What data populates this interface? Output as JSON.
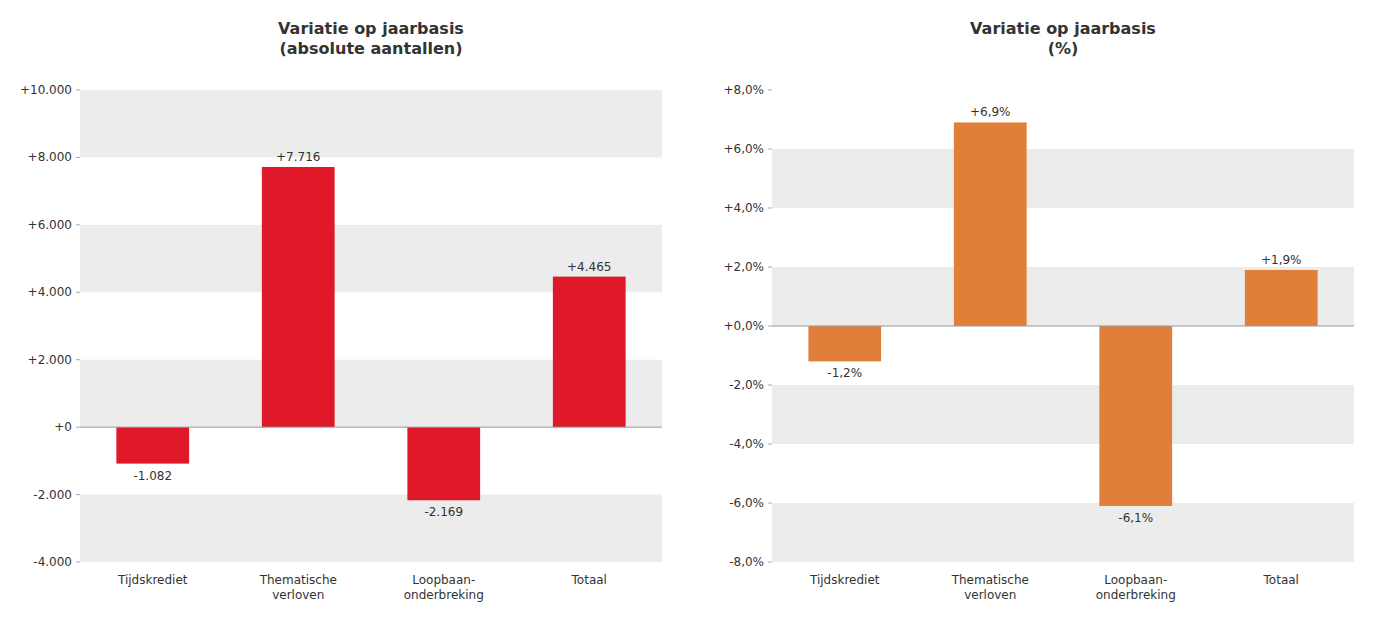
{
  "chart_data": [
    {
      "type": "bar",
      "title": "Variatie op jaarbasis\n(absolute aantallen)",
      "categories": [
        "Tijdskrediet",
        "Thematische\nverloven",
        "Loopbaan-\nonderbreking",
        "Totaal"
      ],
      "values": [
        -1082,
        7716,
        -2169,
        4465
      ],
      "value_labels": [
        "-1.082",
        "+7.716",
        "-2.169",
        "+4.465"
      ],
      "data_labels": true,
      "color": "#e0192a",
      "ylim": [
        -4000,
        10000
      ],
      "yticks": [
        {
          "value": -4000,
          "label": "-4.000"
        },
        {
          "value": -2000,
          "label": "-2.000"
        },
        {
          "value": 0,
          "label": "+0"
        },
        {
          "value": 2000,
          "label": "+2.000"
        },
        {
          "value": 4000,
          "label": "+4.000"
        },
        {
          "value": 6000,
          "label": "+6.000"
        },
        {
          "value": 8000,
          "label": "+8.000"
        },
        {
          "value": 10000,
          "label": "+10.000"
        }
      ],
      "grid": true
    },
    {
      "type": "bar",
      "title": "Variatie op jaarbasis\n(%)",
      "categories": [
        "Tijdskrediet",
        "Thematische\nverloven",
        "Loopbaan-\nonderbreking",
        "Totaal"
      ],
      "values": [
        -1.2,
        6.9,
        -6.1,
        1.9
      ],
      "value_labels": [
        "-1,2%",
        "+6,9%",
        "-6,1%",
        "+1,9%"
      ],
      "data_labels": true,
      "color": "#e07f3a",
      "ylim": [
        -8.0,
        8.0
      ],
      "yticks": [
        {
          "value": -8.0,
          "label": "-8,0%"
        },
        {
          "value": -6.0,
          "label": "-6,0%"
        },
        {
          "value": -4.0,
          "label": "-4,0%"
        },
        {
          "value": -2.0,
          "label": "-2,0%"
        },
        {
          "value": 0.0,
          "label": "+0,0%"
        },
        {
          "value": 2.0,
          "label": "+2,0%"
        },
        {
          "value": 4.0,
          "label": "+4,0%"
        },
        {
          "value": 6.0,
          "label": "+6,0%"
        },
        {
          "value": 8.0,
          "label": "+8,0%"
        }
      ],
      "grid": true
    }
  ]
}
